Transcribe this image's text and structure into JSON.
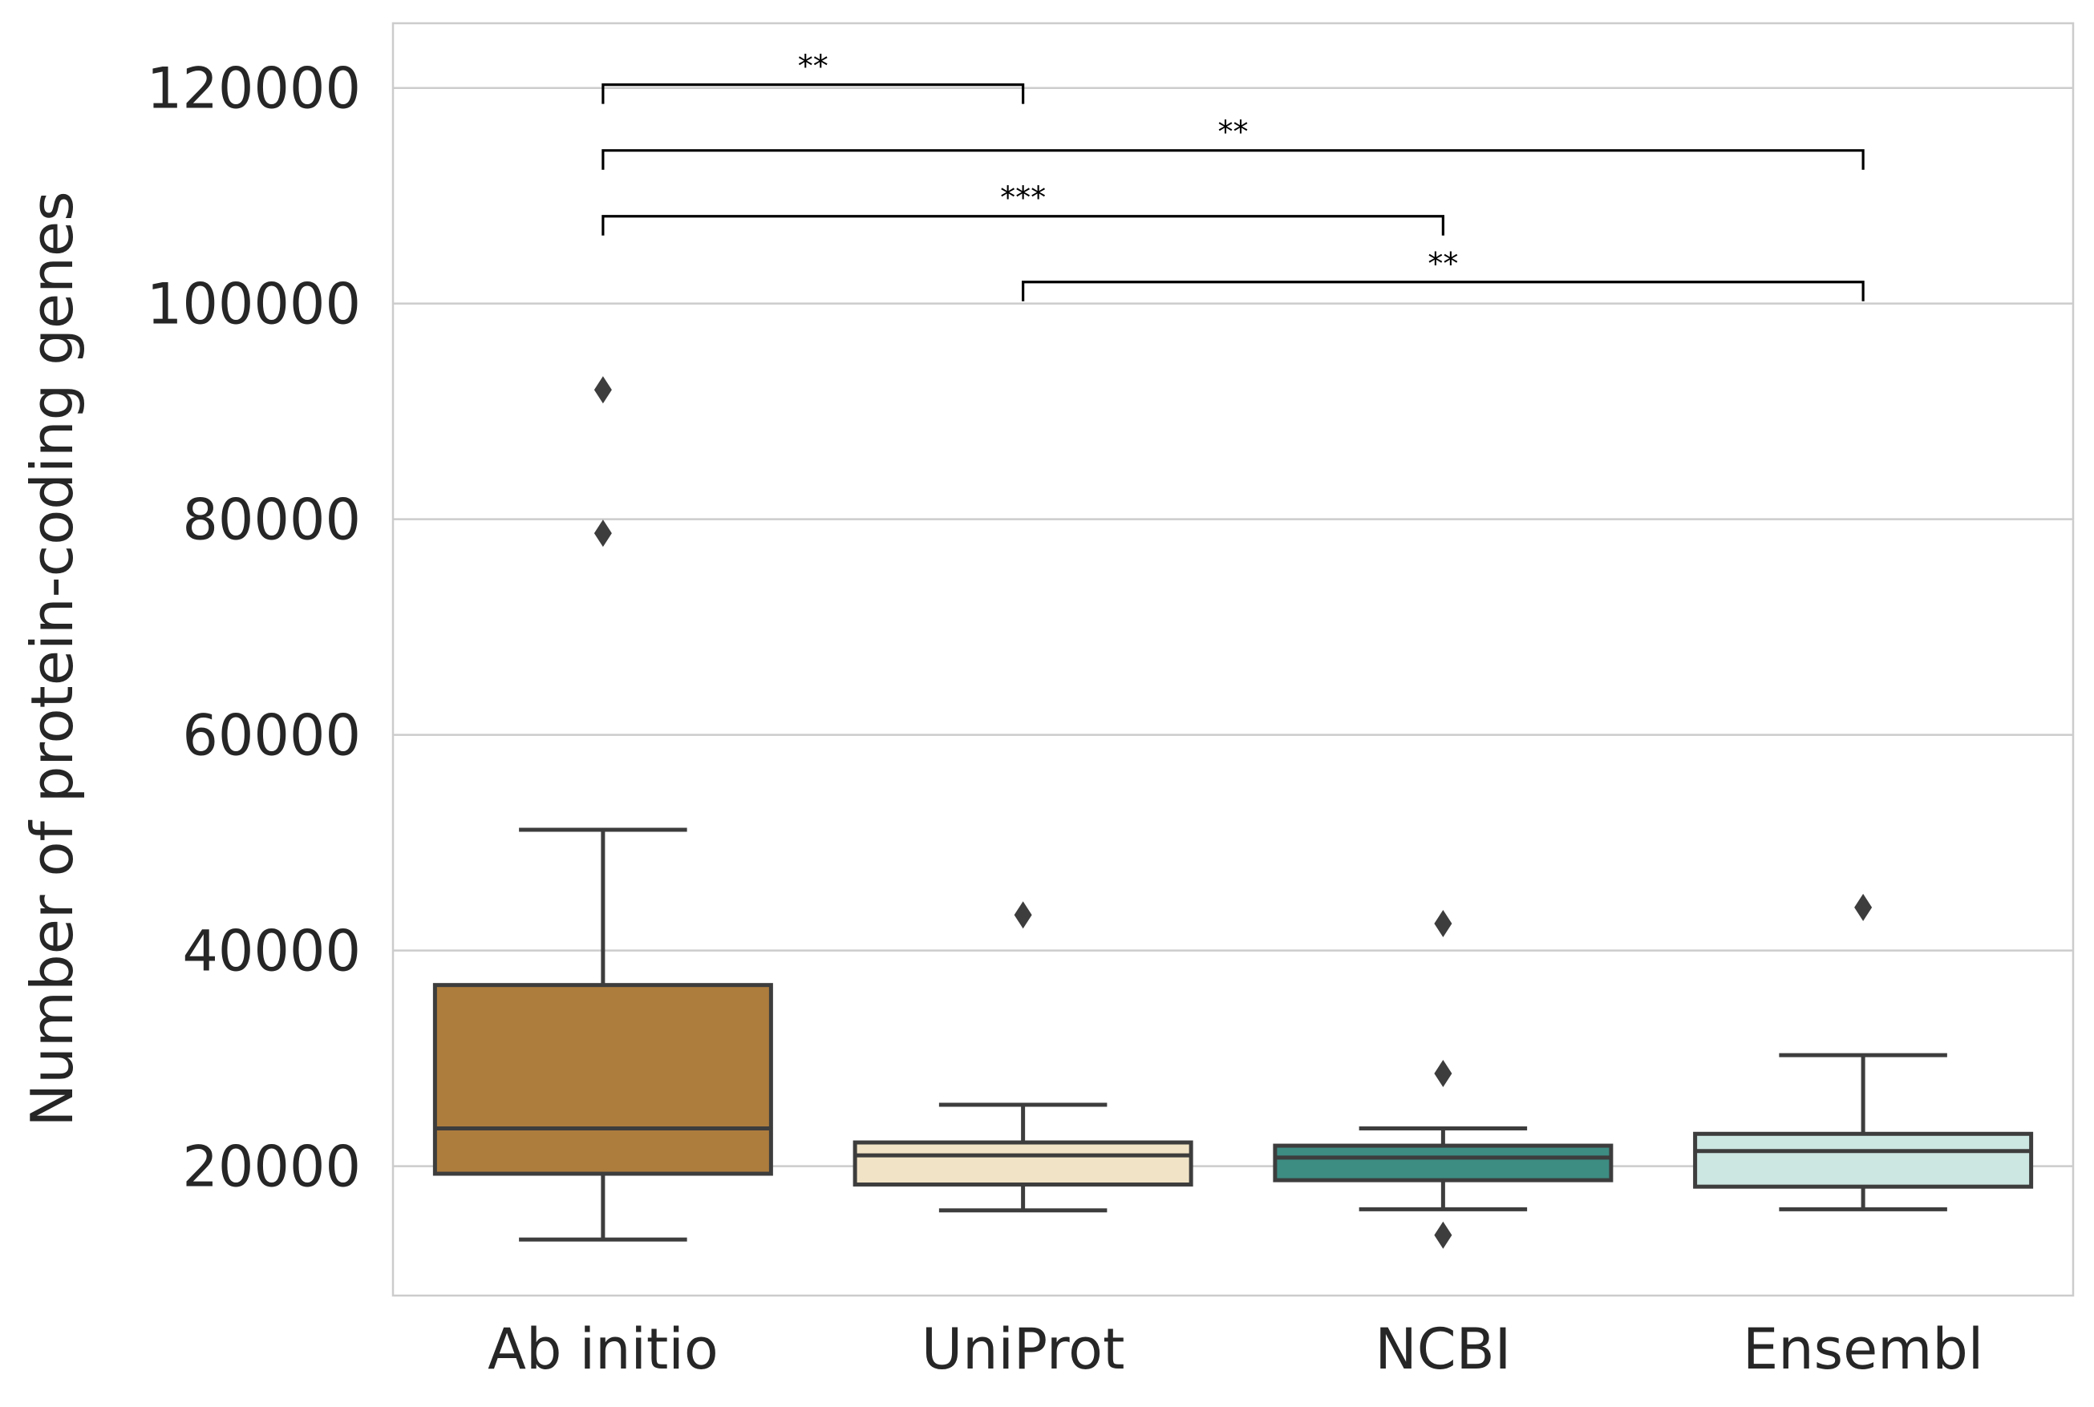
{
  "chart_data": {
    "type": "box",
    "ylabel": "Number of protein-coding genes",
    "xlabel": "",
    "ylim": [
      8000,
      126000
    ],
    "yticks": [
      20000,
      40000,
      60000,
      80000,
      100000,
      120000
    ],
    "grid": "horizontal",
    "categories": [
      "Ab initio",
      "UniProt",
      "NCBI",
      "Ensembl"
    ],
    "boxes": [
      {
        "category": "Ab initio",
        "color": "#ad7d3e",
        "whisker_low": 13200,
        "q1": 19300,
        "median": 23500,
        "q3": 36800,
        "whisker_high": 51200,
        "outliers": [
          92000,
          78700
        ]
      },
      {
        "category": "UniProt",
        "color": "#f1e4c6",
        "whisker_low": 15900,
        "q1": 18300,
        "median": 21000,
        "q3": 22200,
        "whisker_high": 25700,
        "outliers": [
          43300
        ]
      },
      {
        "category": "NCBI",
        "color": "#3d8d83",
        "whisker_low": 16000,
        "q1": 18700,
        "median": 20800,
        "q3": 21900,
        "whisker_high": 23500,
        "outliers": [
          42500,
          28600,
          13600
        ]
      },
      {
        "category": "Ensembl",
        "color": "#cce6e2",
        "whisker_low": 16000,
        "q1": 18100,
        "median": 21400,
        "q3": 23000,
        "whisker_high": 30300,
        "outliers": [
          44000
        ]
      }
    ],
    "significance": [
      {
        "from": "Ab initio",
        "to": "UniProt",
        "label": "**",
        "y": 120300
      },
      {
        "from": "Ab initio",
        "to": "Ensembl",
        "label": "**",
        "y": 114200
      },
      {
        "from": "Ab initio",
        "to": "NCBI",
        "label": "***",
        "y": 108100
      },
      {
        "from": "UniProt",
        "to": "Ensembl",
        "label": "**",
        "y": 102000
      }
    ]
  }
}
